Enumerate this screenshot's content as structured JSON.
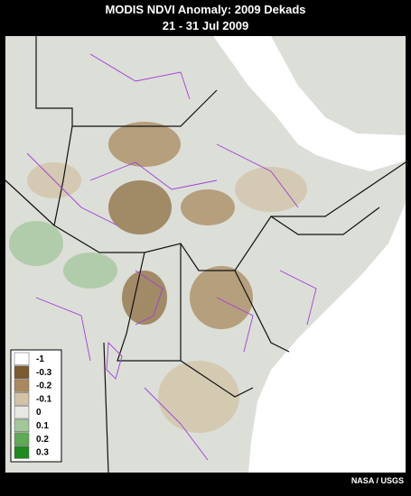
{
  "header": {
    "title": "MODIS NDVI Anomaly: 2009 Dekads",
    "subtitle": "21 - 31 Jul 2009"
  },
  "legend": {
    "items": [
      {
        "label": "-1",
        "color": "#ffffff"
      },
      {
        "label": "-0.3",
        "color": "#7a5a2e"
      },
      {
        "label": "-0.2",
        "color": "#a88a5e"
      },
      {
        "label": "-0.1",
        "color": "#d2c3a6"
      },
      {
        "label": "0",
        "color": "#e8e8e3"
      },
      {
        "label": "0.1",
        "color": "#a3c79b"
      },
      {
        "label": "0.2",
        "color": "#5fab55"
      },
      {
        "label": "0.3",
        "color": "#1f8a1f"
      }
    ]
  },
  "credit": "NASA / USGS"
}
